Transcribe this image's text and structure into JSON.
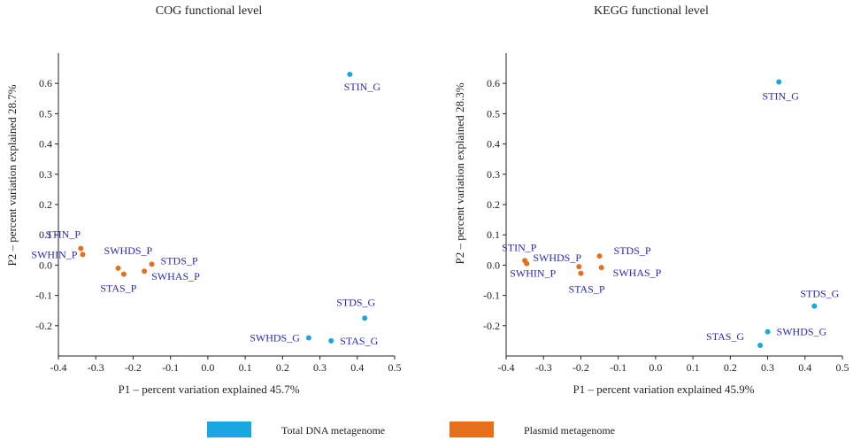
{
  "colors": {
    "total": "#1aa7e0",
    "plasmid": "#e4701e",
    "label": "#2a2ab8"
  },
  "legend": [
    {
      "name": "Total DNA metagenome",
      "color": "#1aa7e0"
    },
    {
      "name": "Plasmid  metagenome",
      "color": "#e4701e"
    }
  ],
  "chart_data": [
    {
      "type": "scatter",
      "title": "COG functional level",
      "xlabel": "P1  –  percent variation explained 45.7%",
      "ylabel": "P2  –  percent variation explained 28.7%",
      "xlim": [
        -0.4,
        0.5
      ],
      "ylim": [
        -0.3,
        0.7
      ],
      "xticks": [
        "-0.4",
        "-0.3",
        "-0.2",
        "-0.1",
        "0.0",
        "0.1",
        "0.2",
        "0.3",
        "0.4",
        "0.5"
      ],
      "yticks": [
        "-0.2",
        "-0.1",
        "0.0",
        "0.1",
        "0.2",
        "0.3",
        "0.4",
        "0.5",
        "0.6"
      ],
      "series": [
        {
          "name": "Total DNA metagenome",
          "points": [
            {
              "label": "STIN_G",
              "x": 0.38,
              "y": 0.63
            },
            {
              "label": "STDS_G",
              "x": 0.42,
              "y": -0.175
            },
            {
              "label": "SWHDS_G",
              "x": 0.27,
              "y": -0.24
            },
            {
              "label": "STAS_G",
              "x": 0.33,
              "y": -0.25
            }
          ]
        },
        {
          "name": "Plasmid  metagenome",
          "points": [
            {
              "label": "STIN_P",
              "x": -0.34,
              "y": 0.055
            },
            {
              "label": "SWHIN_P",
              "x": -0.335,
              "y": 0.035
            },
            {
              "label": "SWHDS_P",
              "x": -0.24,
              "y": -0.01
            },
            {
              "label": "STAS_P",
              "x": -0.225,
              "y": -0.03
            },
            {
              "label": "SWHAS_P",
              "x": -0.17,
              "y": -0.02
            },
            {
              "label": "STDS_P",
              "x": -0.15,
              "y": 0.003
            }
          ]
        }
      ]
    },
    {
      "type": "scatter",
      "title": "KEGG functional level",
      "xlabel": "P1  –  percent variation explained 45.9%",
      "ylabel": "P2  –  percent variation explained 28.3%",
      "xlim": [
        -0.4,
        0.5
      ],
      "ylim": [
        -0.3,
        0.7
      ],
      "xticks": [
        "-0.4",
        "-0.3",
        "-0.2",
        "-0.1",
        "0.0",
        "0.1",
        "0.2",
        "0.3",
        "0.4",
        "0.5"
      ],
      "yticks": [
        "-0.2",
        "-0.1",
        "0.0",
        "0.1",
        "0.2",
        "0.3",
        "0.4",
        "0.5",
        "0.6"
      ],
      "series": [
        {
          "name": "Total DNA metagenome",
          "points": [
            {
              "label": "STIN_G",
              "x": 0.33,
              "y": 0.605
            },
            {
              "label": "STDS_G",
              "x": 0.425,
              "y": -0.135
            },
            {
              "label": "SWHDS_G",
              "x": 0.3,
              "y": -0.22
            },
            {
              "label": "STAS_G",
              "x": 0.28,
              "y": -0.265
            }
          ]
        },
        {
          "name": "Plasmid  metagenome",
          "points": [
            {
              "label": "STIN_P",
              "x": -0.35,
              "y": 0.015
            },
            {
              "label": "SWHIN_P",
              "x": -0.345,
              "y": 0.005
            },
            {
              "label": "SWHDS_P",
              "x": -0.205,
              "y": -0.005
            },
            {
              "label": "STAS_P",
              "x": -0.2,
              "y": -0.027
            },
            {
              "label": "STDS_P",
              "x": -0.15,
              "y": 0.03
            },
            {
              "label": "SWHAS_P",
              "x": -0.145,
              "y": -0.008
            }
          ]
        }
      ]
    }
  ]
}
